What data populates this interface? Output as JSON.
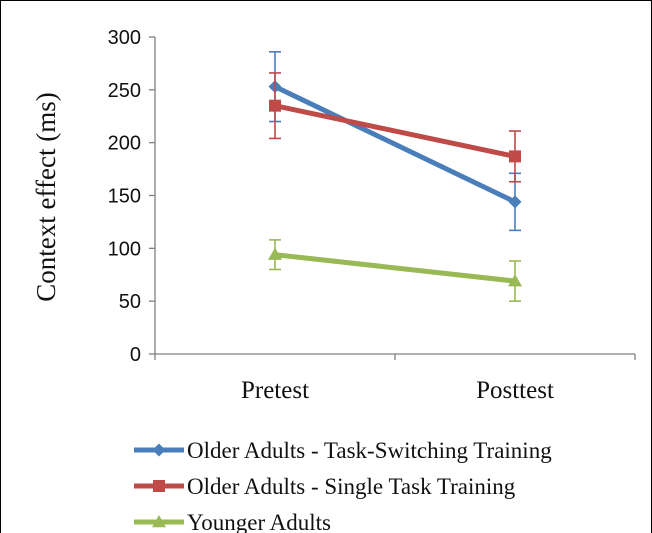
{
  "chart_data": {
    "type": "line",
    "categories": [
      "Pretest",
      "Posttest"
    ],
    "ylabel": "Context effect (ms)",
    "xlabel": "",
    "ylim": [
      0,
      300
    ],
    "yticks": [
      0,
      50,
      100,
      150,
      200,
      250,
      300
    ],
    "grid": false,
    "legend_position": "bottom",
    "series": [
      {
        "name": "Older Adults - Task-Switching Training",
        "color": "#4A7EBB",
        "marker": "diamond",
        "values": [
          253,
          144
        ],
        "errors": [
          33,
          27
        ]
      },
      {
        "name": "Older Adults - Single Task Training",
        "color": "#BE4B48",
        "marker": "square",
        "values": [
          235,
          187
        ],
        "errors": [
          31,
          24
        ]
      },
      {
        "name": "Younger Adults",
        "color": "#98B954",
        "marker": "triangle",
        "values": [
          94,
          69
        ],
        "errors": [
          14,
          19
        ]
      }
    ]
  }
}
